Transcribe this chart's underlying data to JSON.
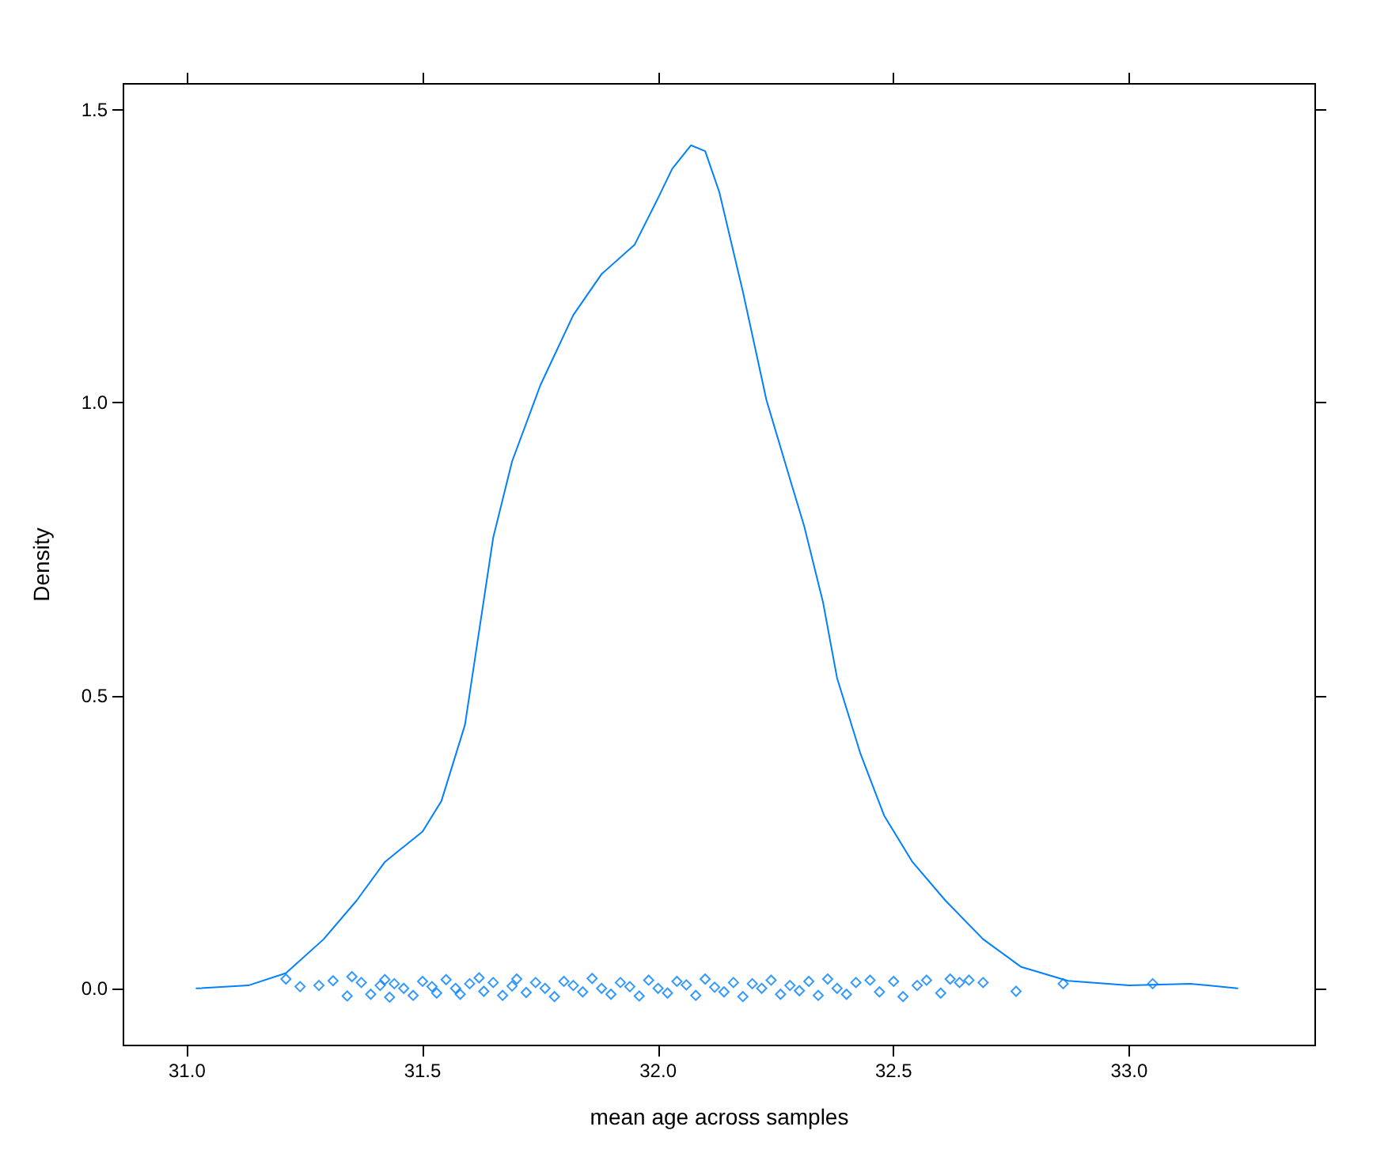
{
  "chart_data": {
    "type": "line",
    "xlabel": "mean age across samples",
    "ylabel": "Density",
    "xlim": [
      30.865,
      33.395
    ],
    "ylim": [
      -0.0975,
      1.545
    ],
    "xticks": [
      {
        "value": 31,
        "label": "31.0"
      },
      31.5,
      {
        "value": 32,
        "label": "32.0"
      },
      32.5,
      {
        "value": 33,
        "label": "33.0"
      }
    ],
    "yticks": [
      {
        "value": 0,
        "label": "0.0"
      },
      {
        "value": 0.5,
        "label": "0.5"
      },
      {
        "value": 1,
        "label": "1.0"
      },
      {
        "value": 1.5,
        "label": "1.5"
      }
    ],
    "grid": false,
    "series": [
      {
        "color": "#0080ff",
        "marker": "none",
        "line_style": "solid",
        "x": [
          31.02,
          31.13,
          31.21,
          31.29,
          31.36,
          31.42,
          31.5,
          31.54,
          31.59,
          31.62,
          31.65,
          31.69,
          31.75,
          31.82,
          31.88,
          31.95,
          32.0,
          32.03,
          32.07,
          32.1,
          32.13,
          32.18,
          32.23,
          32.28,
          32.31,
          32.35,
          32.38,
          32.43,
          32.48,
          32.54,
          32.61,
          32.69,
          32.77,
          32.87,
          33.0,
          33.13,
          33.23
        ],
        "values": [
          0,
          0.005,
          0.026,
          0.084,
          0.15,
          0.216,
          0.268,
          0.32,
          0.45,
          0.61,
          0.77,
          0.9,
          1.03,
          1.15,
          1.22,
          1.27,
          1.35,
          1.4,
          1.44,
          1.43,
          1.36,
          1.19,
          1.005,
          0.87,
          0.79,
          0.66,
          0.53,
          0.4,
          0.295,
          0.216,
          0.15,
          0.084,
          0.037,
          0.013,
          0.005,
          0.008,
          0
        ]
      },
      {
        "type": "scatter",
        "color": "#0080ff",
        "marker": "diamond",
        "x": [
          31.21,
          31.24,
          31.28,
          31.31,
          31.34,
          31.35,
          31.37,
          31.39,
          31.41,
          31.42,
          31.43,
          31.44,
          31.46,
          31.48,
          31.5,
          31.52,
          31.53,
          31.55,
          31.57,
          31.58,
          31.6,
          31.62,
          31.63,
          31.65,
          31.67,
          31.69,
          31.7,
          31.72,
          31.74,
          31.76,
          31.78,
          31.8,
          31.82,
          31.84,
          31.86,
          31.88,
          31.9,
          31.92,
          31.94,
          31.96,
          31.98,
          32.0,
          32.02,
          32.04,
          32.06,
          32.08,
          32.1,
          32.12,
          32.14,
          32.16,
          32.18,
          32.2,
          32.22,
          32.24,
          32.26,
          32.28,
          32.3,
          32.32,
          32.34,
          32.36,
          32.38,
          32.4,
          32.42,
          32.45,
          32.47,
          32.5,
          32.52,
          32.55,
          32.57,
          32.6,
          32.62,
          32.64,
          32.66,
          32.69,
          32.76,
          32.86,
          33.05
        ],
        "values": [
          0.016,
          0.003,
          0.005,
          0.013,
          -0.013,
          0.02,
          0.01,
          -0.01,
          0.005,
          0.015,
          -0.015,
          0.008,
          0.0,
          -0.012,
          0.012,
          0.003,
          -0.008,
          0.015,
          0.0,
          -0.01,
          0.008,
          0.018,
          -0.005,
          0.01,
          -0.012,
          0.004,
          0.016,
          -0.007,
          0.01,
          0.0,
          -0.014,
          0.012,
          0.005,
          -0.006,
          0.017,
          0.0,
          -0.01,
          0.01,
          0.003,
          -0.013,
          0.014,
          0.0,
          -0.008,
          0.012,
          0.006,
          -0.012,
          0.016,
          0.002,
          -0.006,
          0.01,
          -0.014,
          0.008,
          0.0,
          0.014,
          -0.01,
          0.005,
          -0.004,
          0.012,
          -0.012,
          0.016,
          0.0,
          -0.01,
          0.01,
          0.014,
          -0.006,
          0.012,
          -0.014,
          0.005,
          0.014,
          -0.008,
          0.016,
          0.01,
          0.014,
          0.01,
          -0.005,
          0.008,
          0.008
        ]
      }
    ]
  }
}
